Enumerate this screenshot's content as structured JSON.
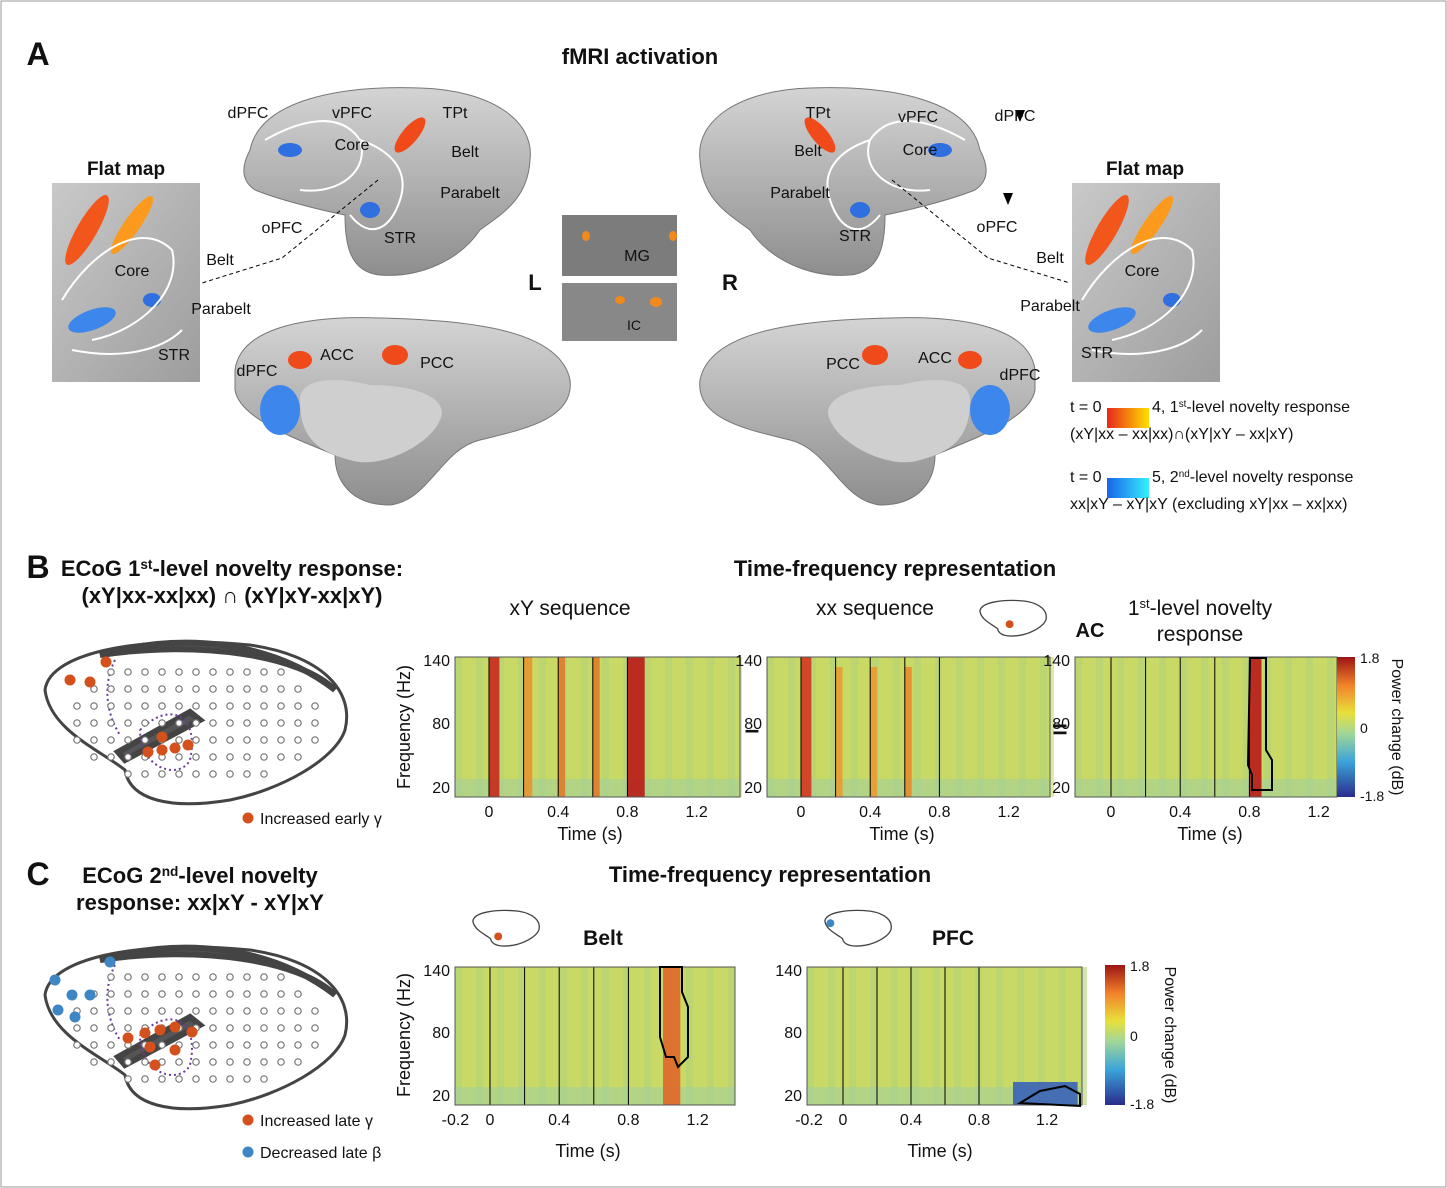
{
  "panel_a": {
    "label": "A",
    "title": "fMRI activation",
    "left_lateral": [
      "dPFC",
      "vPFC",
      "TPt",
      "Core",
      "Belt",
      "Parabelt",
      "oPFC",
      "STR"
    ],
    "right_lateral": [
      "TPt",
      "vPFC",
      "dPFC",
      "Belt",
      "Core",
      "Parabelt",
      "oPFC",
      "STR"
    ],
    "left_flat_map": {
      "title": "Flat map",
      "labels": [
        "Belt",
        "Core",
        "Parabelt",
        "STR"
      ]
    },
    "right_flat_map": {
      "title": "Flat map",
      "labels": [
        "Belt",
        "Core",
        "Parabelt",
        "STR"
      ]
    },
    "subcortical": [
      "MG",
      "IC"
    ],
    "hemispheres": [
      "L",
      "R"
    ],
    "left_medial": [
      "dPFC",
      "ACC",
      "PCC"
    ],
    "right_medial": [
      "PCC",
      "ACC",
      "dPFC"
    ],
    "legend": [
      {
        "min": "t = 0",
        "max": "4",
        "level": ", 1",
        "ordinal": "st",
        "description": "-level novelty response",
        "contrast": "(xY|xx – xx|xx)∩(xY|xY – xx|xY)"
      },
      {
        "min": "t = 0",
        "max": "5",
        "level": ", 2",
        "ordinal": "nd",
        "description": "-level novelty response",
        "contrast": "xx|xY – xY|xY (excluding xY|xx – xx|xx)"
      }
    ]
  },
  "panel_b": {
    "label": "B",
    "heading": {
      "pre": "ECoG 1",
      "ordinal": "st",
      "post": "-level novelty response:",
      "line2": "(xY|xx-xx|xx) ∩ (xY|xY-xx|xY)"
    },
    "title": "Time-frequency representation",
    "plots": [
      {
        "title": "xY sequence"
      },
      {
        "title": "xx sequence"
      },
      {
        "region": "AC",
        "title_pre": "1",
        "ordinal": "st",
        "title_post": "-level novelty",
        "title_line2": "response"
      }
    ],
    "operators": [
      "–",
      "="
    ],
    "y_label": "Frequency (Hz)",
    "x_label": "Time (s)",
    "yticks": [
      "140",
      "80",
      "20"
    ],
    "xticks": [
      "0",
      "0.4",
      "0.8",
      "1.2"
    ],
    "colorbar": {
      "label": "Power change (dB)",
      "ticks": [
        "1.8",
        "0",
        "-1.8"
      ]
    },
    "legend": [
      "Increased early γ"
    ]
  },
  "panel_c": {
    "label": "C",
    "heading": {
      "pre": "ECoG 2",
      "ordinal": "nd",
      "post": "-level novelty",
      "line2": "response: xx|xY - xY|xY"
    },
    "title": "Time-frequency representation",
    "plots": [
      {
        "region": "Belt"
      },
      {
        "region": "PFC"
      }
    ],
    "y_label": "Frequency (Hz)",
    "x_label": "Time (s)",
    "yticks": [
      "140",
      "80",
      "20"
    ],
    "xticks": [
      "-0.2",
      "0",
      "0.4",
      "0.8",
      "1.2"
    ],
    "colorbar": {
      "label": "Power change (dB)",
      "ticks": [
        "1.8",
        "0",
        "-1.8"
      ]
    },
    "legend": [
      "Increased late γ",
      "Decreased late β"
    ]
  }
}
